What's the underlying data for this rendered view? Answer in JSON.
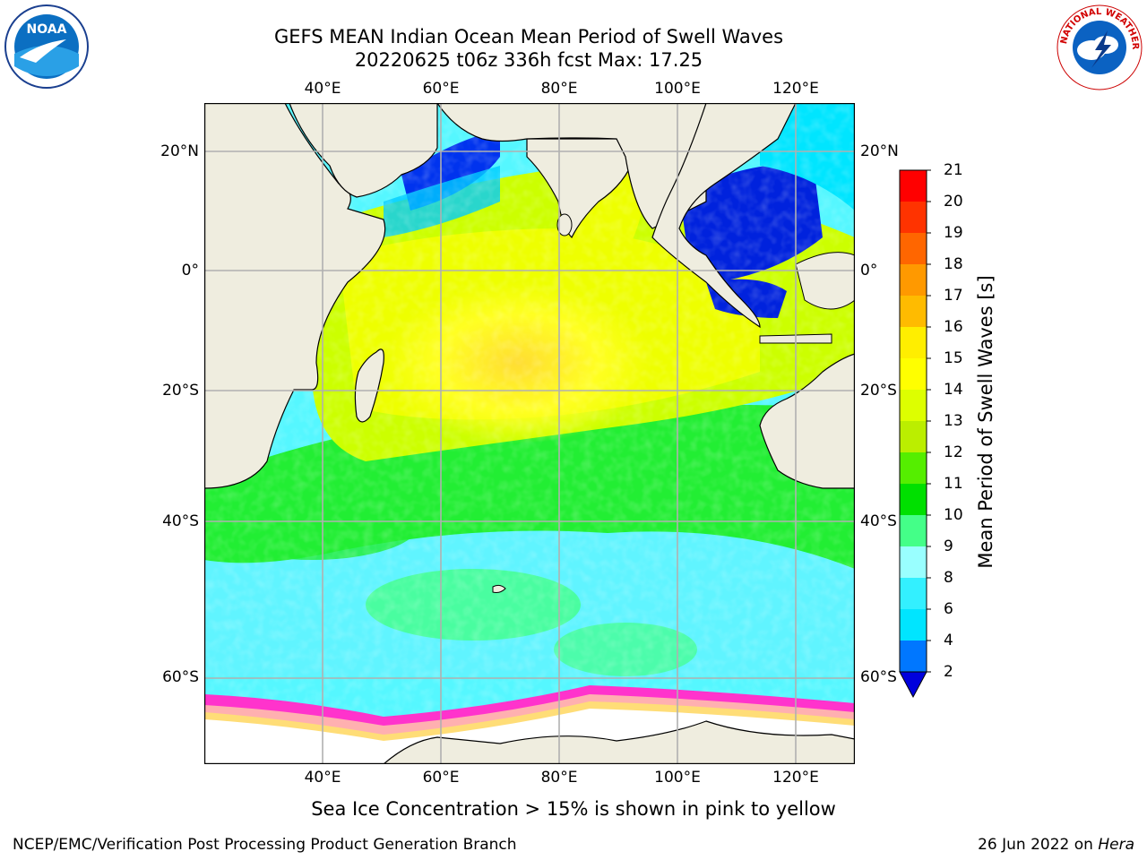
{
  "header": {
    "title_line1": "GEFS MEAN Indian Ocean Mean Period of Swell Waves",
    "title_line2": "20220625 t06z 336h fcst   Max: 17.25"
  },
  "logos": {
    "left": "noaa-logo",
    "right": "national-weather-service-logo",
    "left_text": "NOAA",
    "right_text": "NATIONAL WEATHER SERVICE"
  },
  "map": {
    "lon_range": [
      20,
      130
    ],
    "lat_range": [
      -72,
      28
    ],
    "lon_ticks": [
      "40°E",
      "60°E",
      "80°E",
      "100°E",
      "120°E"
    ],
    "lat_ticks_left": [
      "20°N",
      "0°",
      "20°S",
      "40°S",
      "60°S"
    ],
    "lat_ticks_right": [
      "20°N",
      "0°",
      "20°S",
      "40°S",
      "60°S"
    ],
    "grid": true,
    "max_value": 17.25,
    "land_color": "#efeddf",
    "ice_colors": [
      "#ff33cc",
      "#ffb0b0",
      "#ffdd77"
    ]
  },
  "colorbar": {
    "label": "Mean Period of Swell Waves [s]",
    "ticks": [
      "2",
      "4",
      "6",
      "8",
      "9",
      "10",
      "11",
      "12",
      "13",
      "14",
      "15",
      "16",
      "17",
      "18",
      "19",
      "20",
      "21"
    ],
    "colors": [
      "#0077ff",
      "#00e5ff",
      "#33f0ff",
      "#99ffff",
      "#44ff88",
      "#00e000",
      "#55ee00",
      "#bbee00",
      "#ddff00",
      "#ffff00",
      "#ffee00",
      "#ffbb00",
      "#ff9900",
      "#ff6600",
      "#ff3300",
      "#ff0000"
    ],
    "under_color": "#0000dd",
    "extend": "min"
  },
  "footer": {
    "note": "Sea Ice Concentration > 15% is shown in pink to yellow",
    "left": "NCEP/EMC/Verification Post Processing Product Generation Branch",
    "right_date": "26 Jun 2022 on ",
    "right_machine": "Hera"
  }
}
